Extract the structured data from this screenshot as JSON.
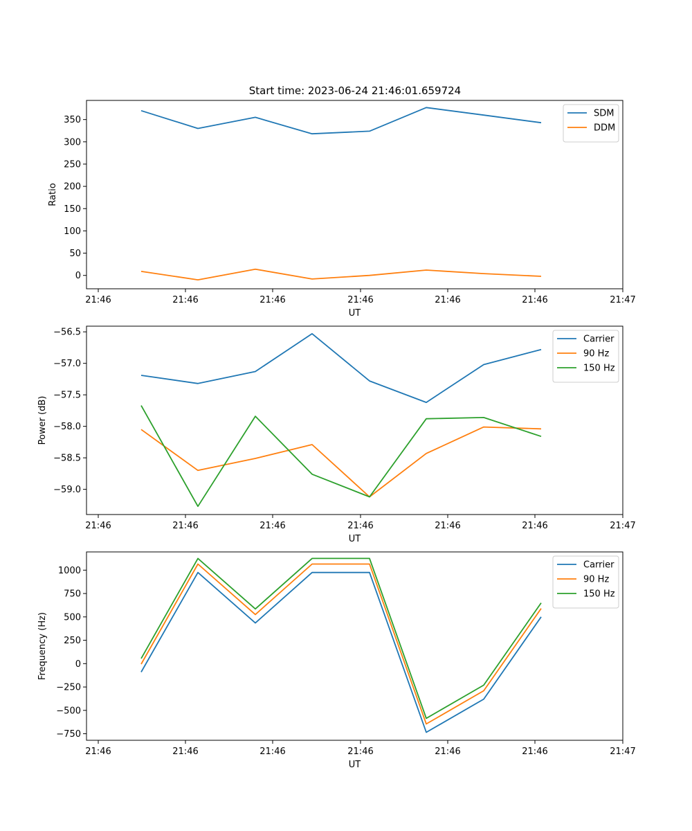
{
  "figure_title": "Start time: 2023-06-24 21:46:01.659724",
  "chart_data": [
    {
      "type": "line",
      "title": "Start time: 2023-06-24 21:46:01.659724",
      "xlabel": "UT",
      "ylabel": "Ratio",
      "x_tick_labels": [
        "21:46",
        "21:46",
        "21:46",
        "21:46",
        "21:46",
        "21:46",
        "21:47"
      ],
      "yticks": [
        0,
        50,
        100,
        150,
        200,
        250,
        300,
        350
      ],
      "ylim": [
        -30,
        393
      ],
      "legend_position": "top-right",
      "series": [
        {
          "name": "SDM",
          "color": "#1f77b4",
          "values": [
            370,
            330,
            355,
            318,
            324,
            377,
            360,
            343
          ]
        },
        {
          "name": "DDM",
          "color": "#ff7f0e",
          "values": [
            9,
            -10,
            14,
            -8,
            0,
            12,
            4,
            -2
          ]
        }
      ]
    },
    {
      "type": "line",
      "xlabel": "UT",
      "ylabel": "Power (dB)",
      "x_tick_labels": [
        "21:46",
        "21:46",
        "21:46",
        "21:46",
        "21:46",
        "21:46",
        "21:47"
      ],
      "yticks": [
        -59.0,
        -58.5,
        -58.0,
        -57.5,
        -57.0,
        -56.5
      ],
      "ytick_labels": [
        "−59.0",
        "−58.5",
        "−58.0",
        "−57.5",
        "−57.0",
        "−56.5"
      ],
      "ylim": [
        -59.4,
        -56.41
      ],
      "legend_position": "top-right",
      "series": [
        {
          "name": "Carrier",
          "color": "#1f77b4",
          "values": [
            -57.19,
            -57.32,
            -57.13,
            -56.53,
            -57.28,
            -57.62,
            -57.02,
            -56.78
          ]
        },
        {
          "name": "90 Hz",
          "color": "#ff7f0e",
          "values": [
            -58.05,
            -58.7,
            -58.51,
            -58.29,
            -59.12,
            -58.43,
            -58.01,
            -58.04
          ]
        },
        {
          "name": "150 Hz",
          "color": "#2ca02c",
          "values": [
            -57.67,
            -59.27,
            -57.84,
            -58.76,
            -59.12,
            -57.88,
            -57.86,
            -58.16
          ]
        }
      ]
    },
    {
      "type": "line",
      "xlabel": "UT",
      "ylabel": "Frequency (Hz)",
      "x_tick_labels": [
        "21:46",
        "21:46",
        "21:46",
        "21:46",
        "21:46",
        "21:46",
        "21:47"
      ],
      "yticks": [
        -750,
        -500,
        -250,
        0,
        250,
        500,
        750,
        1000
      ],
      "ytick_labels": [
        "−750",
        "−500",
        "−250",
        "0",
        "250",
        "500",
        "750",
        "1000"
      ],
      "ylim": [
        -820,
        1195
      ],
      "legend_position": "top-right",
      "series": [
        {
          "name": "Carrier",
          "color": "#1f77b4",
          "values": [
            -90,
            975,
            435,
            975,
            975,
            -735,
            -380,
            500
          ]
        },
        {
          "name": "90 Hz",
          "color": "#ff7f0e",
          "values": [
            -5,
            1065,
            525,
            1065,
            1065,
            -645,
            -290,
            590
          ]
        },
        {
          "name": "150 Hz",
          "color": "#2ca02c",
          "values": [
            55,
            1125,
            585,
            1125,
            1125,
            -585,
            -230,
            650
          ]
        }
      ]
    }
  ]
}
